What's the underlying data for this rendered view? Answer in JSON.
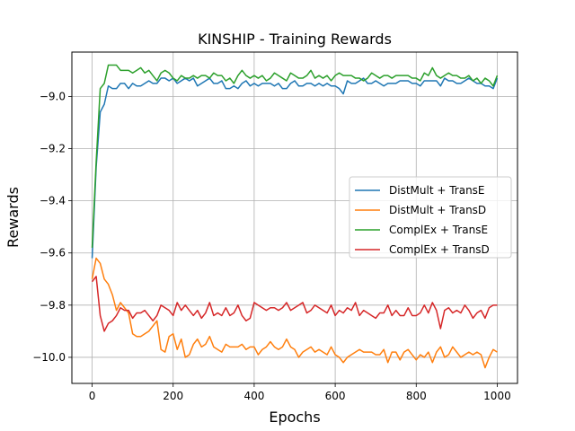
{
  "chart_data": {
    "type": "line",
    "title": "KINSHIP - Training Rewards",
    "xlabel": "Epochs",
    "ylabel": "Rewards",
    "xlim": [
      -50,
      1050
    ],
    "ylim": [
      -10.1,
      -8.83
    ],
    "xticks": [
      0,
      200,
      400,
      600,
      800,
      1000
    ],
    "yticks": [
      -10.0,
      -9.8,
      -9.6,
      -9.4,
      -9.2,
      -9.0
    ],
    "xtick_labels": [
      "0",
      "200",
      "400",
      "600",
      "800",
      "1000"
    ],
    "ytick_labels": [
      "−10.0",
      "−9.8",
      "−9.6",
      "−9.4",
      "−9.2",
      "−9.0"
    ],
    "grid": true,
    "legend_position": "center-right",
    "x": [
      0,
      10,
      20,
      30,
      40,
      50,
      60,
      70,
      80,
      90,
      100,
      110,
      120,
      130,
      140,
      150,
      160,
      170,
      180,
      190,
      200,
      210,
      220,
      230,
      240,
      250,
      260,
      270,
      280,
      290,
      300,
      310,
      320,
      330,
      340,
      350,
      360,
      370,
      380,
      390,
      400,
      410,
      420,
      430,
      440,
      450,
      460,
      470,
      480,
      490,
      500,
      510,
      520,
      530,
      540,
      550,
      560,
      570,
      580,
      590,
      600,
      610,
      620,
      630,
      640,
      650,
      660,
      670,
      680,
      690,
      700,
      710,
      720,
      730,
      740,
      750,
      760,
      770,
      780,
      790,
      800,
      810,
      820,
      830,
      840,
      850,
      860,
      870,
      880,
      890,
      900,
      910,
      920,
      930,
      940,
      950,
      960,
      970,
      980,
      990,
      1000
    ],
    "series": [
      {
        "name": "DistMult + TransE",
        "color": "#1f77b4",
        "values": [
          -9.62,
          -9.27,
          -9.06,
          -9.03,
          -8.96,
          -8.97,
          -8.97,
          -8.95,
          -8.95,
          -8.97,
          -8.95,
          -8.96,
          -8.96,
          -8.95,
          -8.94,
          -8.95,
          -8.95,
          -8.93,
          -8.93,
          -8.94,
          -8.93,
          -8.95,
          -8.94,
          -8.93,
          -8.94,
          -8.93,
          -8.96,
          -8.95,
          -8.94,
          -8.93,
          -8.95,
          -8.95,
          -8.94,
          -8.97,
          -8.97,
          -8.96,
          -8.97,
          -8.95,
          -8.94,
          -8.96,
          -8.95,
          -8.96,
          -8.95,
          -8.95,
          -8.95,
          -8.96,
          -8.95,
          -8.97,
          -8.97,
          -8.95,
          -8.94,
          -8.96,
          -8.96,
          -8.95,
          -8.95,
          -8.96,
          -8.95,
          -8.96,
          -8.95,
          -8.96,
          -8.96,
          -8.97,
          -8.99,
          -8.94,
          -8.95,
          -8.95,
          -8.94,
          -8.93,
          -8.95,
          -8.95,
          -8.94,
          -8.95,
          -8.96,
          -8.95,
          -8.95,
          -8.95,
          -8.94,
          -8.94,
          -8.94,
          -8.95,
          -8.95,
          -8.96,
          -8.94,
          -8.94,
          -8.94,
          -8.94,
          -8.96,
          -8.93,
          -8.94,
          -8.94,
          -8.95,
          -8.95,
          -8.94,
          -8.93,
          -8.94,
          -8.95,
          -8.95,
          -8.96,
          -8.96,
          -8.97,
          -8.93
        ]
      },
      {
        "name": "DistMult + TransD",
        "color": "#ff7f0e",
        "values": [
          -9.7,
          -9.62,
          -9.64,
          -9.7,
          -9.72,
          -9.76,
          -9.82,
          -9.79,
          -9.81,
          -9.83,
          -9.91,
          -9.92,
          -9.92,
          -9.91,
          -9.9,
          -9.88,
          -9.86,
          -9.97,
          -9.98,
          -9.92,
          -9.91,
          -9.97,
          -9.93,
          -10.0,
          -9.99,
          -9.95,
          -9.93,
          -9.96,
          -9.95,
          -9.92,
          -9.96,
          -9.97,
          -9.98,
          -9.95,
          -9.96,
          -9.96,
          -9.96,
          -9.95,
          -9.97,
          -9.96,
          -9.96,
          -9.99,
          -9.97,
          -9.96,
          -9.94,
          -9.96,
          -9.97,
          -9.96,
          -9.93,
          -9.96,
          -9.97,
          -10.0,
          -9.98,
          -9.97,
          -9.96,
          -9.98,
          -9.97,
          -9.98,
          -9.99,
          -9.96,
          -9.99,
          -10.0,
          -10.02,
          -10.0,
          -9.99,
          -9.98,
          -9.97,
          -9.98,
          -9.98,
          -9.98,
          -9.99,
          -9.99,
          -9.97,
          -10.02,
          -9.98,
          -9.98,
          -10.01,
          -9.98,
          -9.97,
          -9.99,
          -10.01,
          -9.99,
          -10.0,
          -9.98,
          -10.02,
          -9.98,
          -9.96,
          -10.0,
          -9.99,
          -9.96,
          -9.98,
          -10.0,
          -9.99,
          -9.98,
          -9.99,
          -9.98,
          -9.99,
          -10.04,
          -10.0,
          -9.97,
          -9.98
        ]
      },
      {
        "name": "ComplEx + TransE",
        "color": "#2ca02c",
        "values": [
          -9.58,
          -9.25,
          -8.97,
          -8.95,
          -8.88,
          -8.88,
          -8.88,
          -8.9,
          -8.9,
          -8.9,
          -8.91,
          -8.9,
          -8.89,
          -8.91,
          -8.9,
          -8.92,
          -8.94,
          -8.91,
          -8.9,
          -8.91,
          -8.93,
          -8.94,
          -8.92,
          -8.93,
          -8.93,
          -8.92,
          -8.93,
          -8.92,
          -8.92,
          -8.93,
          -8.91,
          -8.92,
          -8.92,
          -8.94,
          -8.93,
          -8.95,
          -8.92,
          -8.9,
          -8.92,
          -8.93,
          -8.92,
          -8.93,
          -8.92,
          -8.94,
          -8.93,
          -8.91,
          -8.92,
          -8.93,
          -8.94,
          -8.91,
          -8.92,
          -8.93,
          -8.93,
          -8.92,
          -8.9,
          -8.93,
          -8.92,
          -8.93,
          -8.92,
          -8.94,
          -8.92,
          -8.91,
          -8.92,
          -8.92,
          -8.92,
          -8.93,
          -8.93,
          -8.94,
          -8.93,
          -8.91,
          -8.92,
          -8.93,
          -8.92,
          -8.92,
          -8.93,
          -8.92,
          -8.92,
          -8.92,
          -8.92,
          -8.93,
          -8.93,
          -8.94,
          -8.91,
          -8.92,
          -8.89,
          -8.92,
          -8.93,
          -8.92,
          -8.91,
          -8.92,
          -8.92,
          -8.93,
          -8.93,
          -8.92,
          -8.94,
          -8.93,
          -8.95,
          -8.93,
          -8.94,
          -8.96,
          -8.92
        ]
      },
      {
        "name": "ComplEx + TransD",
        "color": "#d62728",
        "values": [
          -9.71,
          -9.69,
          -9.84,
          -9.9,
          -9.87,
          -9.86,
          -9.84,
          -9.81,
          -9.82,
          -9.82,
          -9.85,
          -9.83,
          -9.83,
          -9.82,
          -9.84,
          -9.86,
          -9.84,
          -9.8,
          -9.81,
          -9.82,
          -9.84,
          -9.79,
          -9.82,
          -9.8,
          -9.82,
          -9.84,
          -9.82,
          -9.85,
          -9.83,
          -9.79,
          -9.84,
          -9.83,
          -9.84,
          -9.81,
          -9.84,
          -9.83,
          -9.8,
          -9.84,
          -9.86,
          -9.85,
          -9.79,
          -9.8,
          -9.81,
          -9.82,
          -9.81,
          -9.81,
          -9.82,
          -9.81,
          -9.79,
          -9.82,
          -9.81,
          -9.8,
          -9.79,
          -9.83,
          -9.82,
          -9.8,
          -9.81,
          -9.82,
          -9.83,
          -9.8,
          -9.84,
          -9.82,
          -9.83,
          -9.81,
          -9.82,
          -9.79,
          -9.84,
          -9.82,
          -9.83,
          -9.84,
          -9.85,
          -9.83,
          -9.83,
          -9.8,
          -9.84,
          -9.82,
          -9.84,
          -9.84,
          -9.81,
          -9.84,
          -9.84,
          -9.83,
          -9.8,
          -9.83,
          -9.79,
          -9.82,
          -9.89,
          -9.82,
          -9.81,
          -9.83,
          -9.82,
          -9.83,
          -9.8,
          -9.82,
          -9.85,
          -9.83,
          -9.82,
          -9.85,
          -9.81,
          -9.8,
          -9.8
        ]
      }
    ]
  }
}
